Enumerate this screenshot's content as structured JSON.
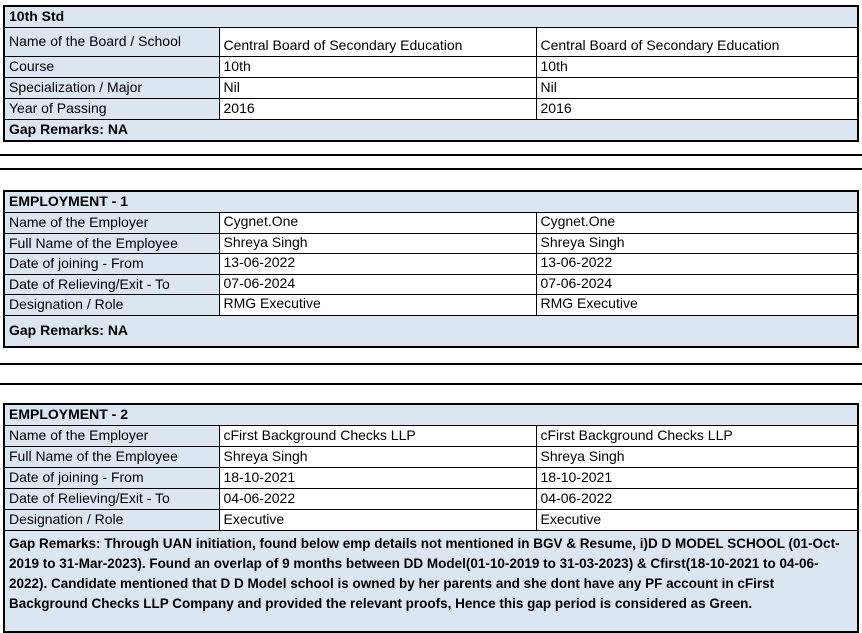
{
  "theme": {
    "label_fill": "#dce6f1",
    "border_color": "#000000",
    "background": "#ffffff",
    "text_color": "#000000"
  },
  "tables": [
    {
      "header": "10th Std",
      "rows": [
        {
          "label": "Name of the Board / School",
          "value1": "Central Board of Secondary Education",
          "value2": "Central Board of Secondary Education"
        },
        {
          "label": "Course",
          "value1": "10th",
          "value2": "10th"
        },
        {
          "label": "Specialization / Major",
          "value1": "Nil",
          "value2": "Nil"
        },
        {
          "label": "Year of Passing",
          "value1": "2016",
          "value2": "2016"
        }
      ],
      "gap_remarks": "Gap Remarks: NA"
    },
    {
      "header": "EMPLOYMENT - 1",
      "rows": [
        {
          "label": "Name of the Employer",
          "value1": "Cygnet.One",
          "value2": "Cygnet.One"
        },
        {
          "label": "Full Name of the Employee",
          "value1": "Shreya Singh",
          "value2": "Shreya Singh"
        },
        {
          "label": "Date of joining - From",
          "value1": "13-06-2022",
          "value2": "13-06-2022"
        },
        {
          "label": "Date of Relieving/Exit - To",
          "value1": "07-06-2024",
          "value2": "07-06-2024"
        },
        {
          "label": "Designation / Role",
          "value1": "RMG Executive",
          "value2": "RMG Executive"
        }
      ],
      "gap_remarks": "Gap Remarks: NA"
    },
    {
      "header": "EMPLOYMENT - 2",
      "rows": [
        {
          "label": "Name of the Employer",
          "value1": "cFirst Background Checks LLP",
          "value2": "cFirst Background Checks LLP"
        },
        {
          "label": "Full Name of the Employee",
          "value1": "Shreya Singh",
          "value2": "Shreya Singh"
        },
        {
          "label": "Date of joining - From",
          "value1": "18-10-2021",
          "value2": "18-10-2021"
        },
        {
          "label": "Date of Relieving/Exit - To",
          "value1": "04-06-2022",
          "value2": "04-06-2022"
        },
        {
          "label": "Designation / Role",
          "value1": "Executive",
          "value2": "Executive"
        }
      ],
      "gap_remarks": "Gap Remarks: Through UAN initiation, found below emp details not mentioned in BGV & Resume, i)D D MODEL SCHOOL (01-Oct-2019 to 31-Mar-2023). Found an overlap of 9 months between DD Model(01-10-2019 to 31-03-2023) & Cfirst(18-10-2021 to 04-06-2022). Candidate mentioned that D D Model school is owned by her parents and she dont have any PF account in cFirst Background Checks LLP Company and provided the relevant proofs, Hence this gap period is considered as Green."
    }
  ]
}
